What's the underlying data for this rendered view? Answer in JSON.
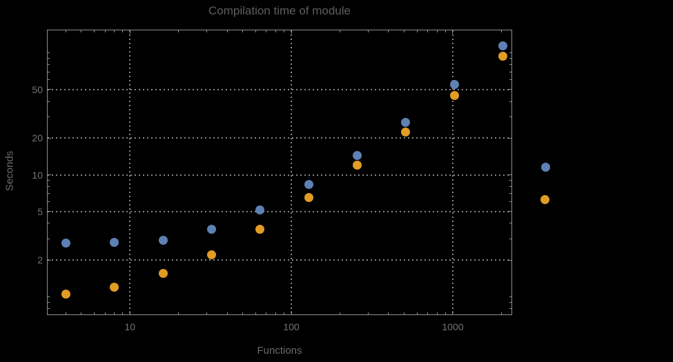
{
  "chart_data": {
    "type": "scatter",
    "title": "Compilation time of module",
    "xlabel": "Functions",
    "ylabel": "Seconds",
    "xscale": "log",
    "yscale": "log",
    "xlim": [
      3.09,
      2310
    ],
    "ylim": [
      0.717,
      153
    ],
    "x_major_ticks": [
      10,
      100,
      1000
    ],
    "y_major_ticks": [
      2,
      5,
      10,
      20,
      50
    ],
    "grid": "dotted",
    "legend_position": "right-of-plot",
    "legend_labels_visible": false,
    "x": [
      4,
      8,
      16,
      32,
      64,
      128,
      256,
      512,
      1024,
      2048
    ],
    "series": [
      {
        "name": "series-1-blue",
        "color": "#5e81b5",
        "values": [
          2.77,
          2.8,
          2.9,
          3.58,
          5.15,
          8.3,
          14.4,
          27,
          55,
          114
        ]
      },
      {
        "name": "series-2-orange",
        "color": "#e19c24",
        "values": [
          1.05,
          1.2,
          1.55,
          2.2,
          3.6,
          6.5,
          12,
          22.5,
          45,
          94
        ]
      }
    ]
  },
  "style": {
    "background": "#000000",
    "frame_color": "#919191",
    "grid_color": "#878787",
    "title_color": "#5e5e5e",
    "axis_label_color": "#6c6c6c",
    "tick_label_color": "#757575"
  }
}
